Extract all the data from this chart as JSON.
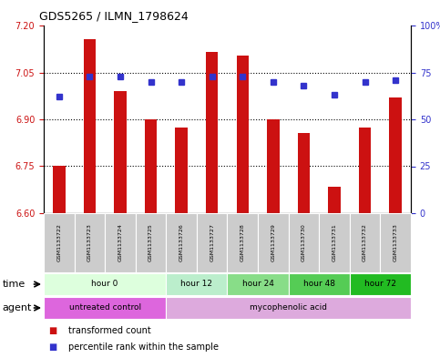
{
  "title": "GDS5265 / ILMN_1798624",
  "samples": [
    "GSM1133722",
    "GSM1133723",
    "GSM1133724",
    "GSM1133725",
    "GSM1133726",
    "GSM1133727",
    "GSM1133728",
    "GSM1133729",
    "GSM1133730",
    "GSM1133731",
    "GSM1133732",
    "GSM1133733"
  ],
  "bar_values": [
    6.75,
    7.155,
    6.99,
    6.9,
    6.875,
    7.115,
    7.105,
    6.9,
    6.855,
    6.685,
    6.875,
    6.97
  ],
  "dot_pct": [
    62,
    73,
    73,
    70,
    70,
    73,
    73,
    70,
    68,
    63,
    70,
    71
  ],
  "bar_bottom": 6.6,
  "ylim": [
    6.6,
    7.2
  ],
  "ylim_right": [
    0,
    100
  ],
  "yticks_left": [
    6.6,
    6.75,
    6.9,
    7.05,
    7.2
  ],
  "yticks_right": [
    0,
    25,
    50,
    75,
    100
  ],
  "bar_color": "#cc1111",
  "dot_color": "#3333cc",
  "time_groups": [
    {
      "label": "hour 0",
      "start": 0,
      "end": 4,
      "color": "#ddffdd"
    },
    {
      "label": "hour 12",
      "start": 4,
      "end": 6,
      "color": "#bbeecc"
    },
    {
      "label": "hour 24",
      "start": 6,
      "end": 8,
      "color": "#88dd88"
    },
    {
      "label": "hour 48",
      "start": 8,
      "end": 10,
      "color": "#55cc55"
    },
    {
      "label": "hour 72",
      "start": 10,
      "end": 12,
      "color": "#22bb22"
    }
  ],
  "agent_groups": [
    {
      "label": "untreated control",
      "start": 0,
      "end": 4,
      "color": "#dd66dd"
    },
    {
      "label": "mycophenolic acid",
      "start": 4,
      "end": 12,
      "color": "#ddaadd"
    }
  ],
  "legend_items": [
    {
      "label": "transformed count",
      "color": "#cc1111"
    },
    {
      "label": "percentile rank within the sample",
      "color": "#3333cc"
    }
  ],
  "xlabel_time": "time",
  "xlabel_agent": "agent",
  "bg_color": "#ffffff",
  "plot_bg": "#ffffff",
  "sample_bg": "#cccccc"
}
